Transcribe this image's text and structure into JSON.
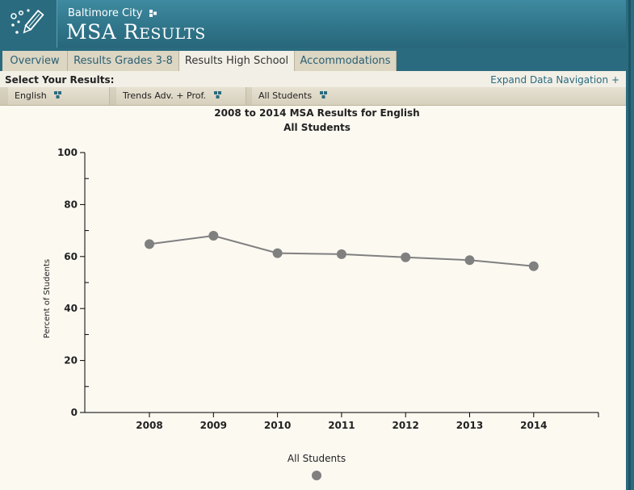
{
  "header": {
    "city": "Baltimore City",
    "title_first": "MSA R",
    "title_rest": "ESULTS"
  },
  "tabs": [
    {
      "label": "Overview",
      "active": false
    },
    {
      "label": "Results Grades 3-8",
      "active": false
    },
    {
      "label": "Results High School",
      "active": true
    },
    {
      "label": "Accommodations",
      "active": false
    }
  ],
  "select_label": "Select Your Results:",
  "expand_label": "Expand Data Navigation +",
  "dropdowns": {
    "subject": "English",
    "measure": "Trends Adv. + Prof.",
    "group": "All Students"
  },
  "colors": {
    "header": "#2f7489",
    "tab_text": "#2a5f73",
    "line": "#808080",
    "marker": "#808080"
  },
  "chart_data": {
    "type": "line",
    "title": "2008 to 2014 MSA Results for English",
    "subtitle": "All Students",
    "ylabel": "Percent of Students",
    "xlabel": "",
    "ylim": [
      0,
      100
    ],
    "yticks": [
      0,
      20,
      40,
      60,
      80,
      100
    ],
    "categories": [
      "2008",
      "2009",
      "2010",
      "2011",
      "2012",
      "2013",
      "2014"
    ],
    "series": [
      {
        "name": "All Students",
        "values": [
          64.8,
          68.0,
          61.3,
          60.9,
          59.7,
          58.6,
          56.3
        ]
      }
    ],
    "legend": "bottom-center",
    "grid": false
  }
}
